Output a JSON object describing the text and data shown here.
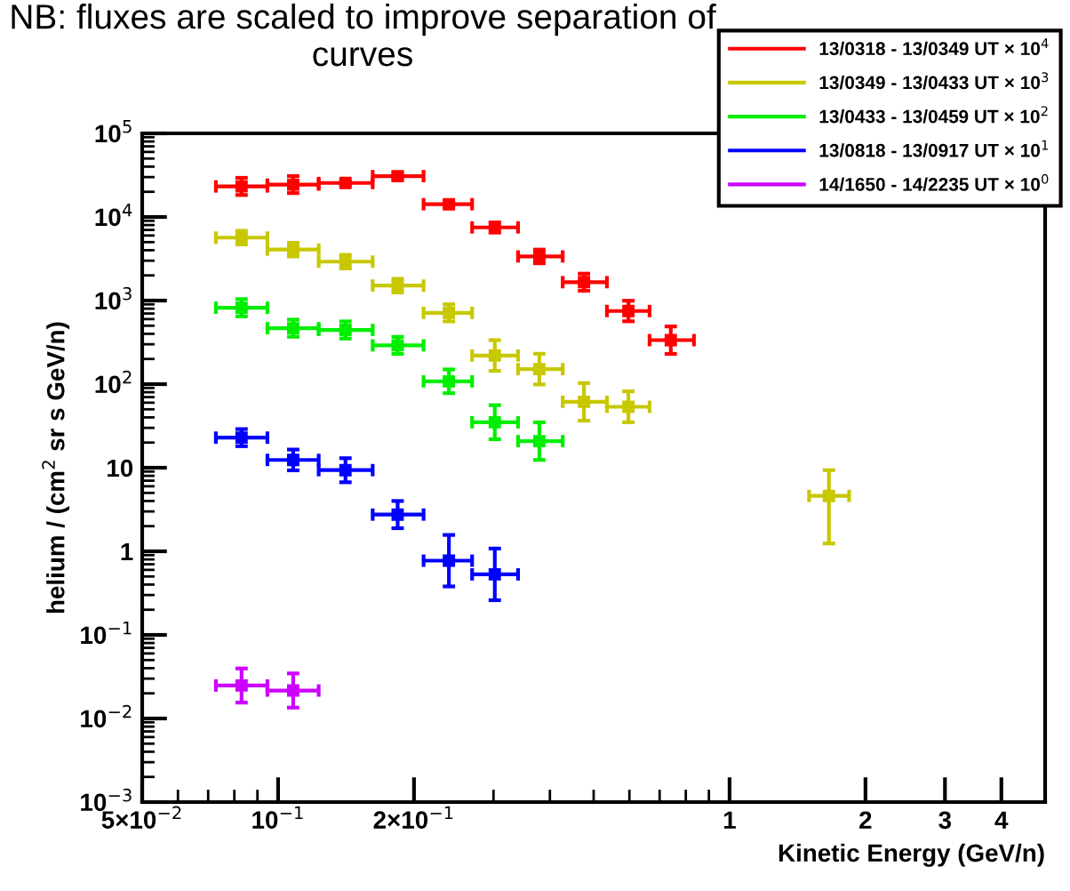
{
  "chart_data": {
    "type": "scatter",
    "title": "NB: fluxes are scaled to improve separation of curves",
    "xlabel": "Kinetic Energy (GeV/n)",
    "ylabel": "helium / (cm$^{2}$ sr s GeV/n)",
    "log": "xy",
    "marker": "square",
    "grid": false,
    "legend": "top right",
    "xlim": [
      0.05,
      5
    ],
    "ylim": [
      0.001,
      100000
    ],
    "xticks": [
      {
        "value": 0.05,
        "label": "5×10$^{−2}$"
      },
      {
        "value": 0.1,
        "label": "10$^{−1}$"
      },
      {
        "value": 0.2,
        "label": "2×10$^{−1}$"
      },
      1,
      2,
      3,
      4
    ],
    "yticks": [
      {
        "value": 0.001,
        "label": "10$^{−3}$"
      },
      {
        "value": 0.01,
        "label": "10$^{−2}$"
      },
      {
        "value": 0.1,
        "label": "10$^{−1}$"
      },
      1,
      10,
      {
        "value": 100,
        "label": "10$^{2}$"
      },
      {
        "value": 1000,
        "label": "10$^{3}$"
      },
      {
        "value": 10000,
        "label": "10$^{4}$"
      },
      {
        "value": 100000,
        "label": "10$^{5}$"
      }
    ],
    "series": [
      {
        "name": "13/0318 - 13/0349 UT × 10$^{4}$",
        "color": "#ff0000",
        "x": [
          0.083,
          0.108,
          0.141,
          0.184,
          0.239,
          0.302,
          0.379,
          0.476,
          0.597,
          0.741
        ],
        "values": [
          23200,
          24400,
          25500,
          30800,
          14200,
          7500,
          3370,
          1660,
          750,
          336
        ],
        "errors": [
          [
            18300,
            29400
          ],
          [
            19300,
            30900
          ],
          [
            24300,
            26700
          ],
          [
            28000,
            33800
          ],
          [
            13200,
            15200
          ],
          [
            6500,
            8600
          ],
          [
            2790,
            4070
          ],
          [
            1310,
            2100
          ],
          [
            565,
            995
          ],
          [
            230,
            490
          ]
        ],
        "xerrors": [
          [
            0.0728,
            0.0947
          ],
          [
            0.0947,
            0.123
          ],
          [
            0.123,
            0.162
          ],
          [
            0.162,
            0.21
          ],
          [
            0.21,
            0.269
          ],
          [
            0.269,
            0.34
          ],
          [
            0.34,
            0.427
          ],
          [
            0.427,
            0.535
          ],
          [
            0.535,
            0.665
          ],
          [
            0.665,
            0.834
          ]
        ]
      },
      {
        "name": "13/0349 - 13/0433 UT × 10$^{3}$",
        "color": "#c8c800",
        "x": [
          0.083,
          0.108,
          0.141,
          0.184,
          0.239,
          0.302,
          0.379,
          0.476,
          0.597,
          1.66
        ],
        "values": [
          5660,
          4070,
          2920,
          1510,
          713,
          220,
          151,
          61.5,
          53.5,
          4.6
        ],
        "errors": [
          [
            4690,
            6830
          ],
          [
            3370,
            4910
          ],
          [
            2420,
            3520
          ],
          [
            1250,
            1820
          ],
          [
            563,
            903
          ],
          [
            144,
            336
          ],
          [
            99,
            231
          ],
          [
            36.6,
            103
          ],
          [
            35,
            82
          ],
          [
            1.24,
            9.36
          ]
        ],
        "xerrors": [
          [
            0.0728,
            0.0947
          ],
          [
            0.0947,
            0.123
          ],
          [
            0.123,
            0.162
          ],
          [
            0.162,
            0.21
          ],
          [
            0.21,
            0.269
          ],
          [
            0.269,
            0.34
          ],
          [
            0.34,
            0.427
          ],
          [
            0.427,
            0.535
          ],
          [
            0.535,
            0.665
          ],
          [
            1.5,
            1.84
          ]
        ]
      },
      {
        "name": "13/0433 - 13/0459 UT × 10$^{2}$",
        "color": "#00ee00",
        "x": [
          0.083,
          0.108,
          0.141,
          0.184,
          0.239,
          0.302,
          0.379
        ],
        "values": [
          820,
          467,
          445,
          291,
          108,
          35,
          20.8
        ],
        "errors": [
          [
            648,
            1040
          ],
          [
            369,
            591
          ],
          [
            351,
            563
          ],
          [
            230,
            368
          ],
          [
            78,
            150
          ],
          [
            21.9,
            56
          ],
          [
            12.4,
            34.9
          ]
        ],
        "xerrors": [
          [
            0.0728,
            0.0947
          ],
          [
            0.0947,
            0.123
          ],
          [
            0.123,
            0.162
          ],
          [
            0.162,
            0.21
          ],
          [
            0.21,
            0.269
          ],
          [
            0.269,
            0.34
          ],
          [
            0.34,
            0.427
          ]
        ]
      },
      {
        "name": "13/0818 - 13/0917 UT × 10$^{1}$",
        "color": "#0000ff",
        "x": [
          0.083,
          0.108,
          0.141,
          0.184,
          0.239,
          0.302
        ],
        "values": [
          22.9,
          12.4,
          9.36,
          2.75,
          0.773,
          0.53
        ],
        "errors": [
          [
            18.1,
            29
          ],
          [
            9.3,
            16.5
          ],
          [
            6.7,
            13
          ],
          [
            1.89,
            4.0
          ],
          [
            0.38,
            1.57
          ],
          [
            0.26,
            1.08
          ]
        ],
        "xerrors": [
          [
            0.0728,
            0.0947
          ],
          [
            0.0947,
            0.123
          ],
          [
            0.123,
            0.162
          ],
          [
            0.162,
            0.21
          ],
          [
            0.21,
            0.269
          ],
          [
            0.269,
            0.34
          ]
        ]
      },
      {
        "name": "14/1650 - 14/2235 UT × 10$^{0}$",
        "color": "#cc00ff",
        "x": [
          0.083,
          0.108
        ],
        "values": [
          0.0248,
          0.0216
        ],
        "errors": [
          [
            0.0155,
            0.0397
          ],
          [
            0.0135,
            0.0346
          ]
        ],
        "xerrors": [
          [
            0.0728,
            0.0947
          ],
          [
            0.0947,
            0.123
          ]
        ]
      }
    ]
  }
}
